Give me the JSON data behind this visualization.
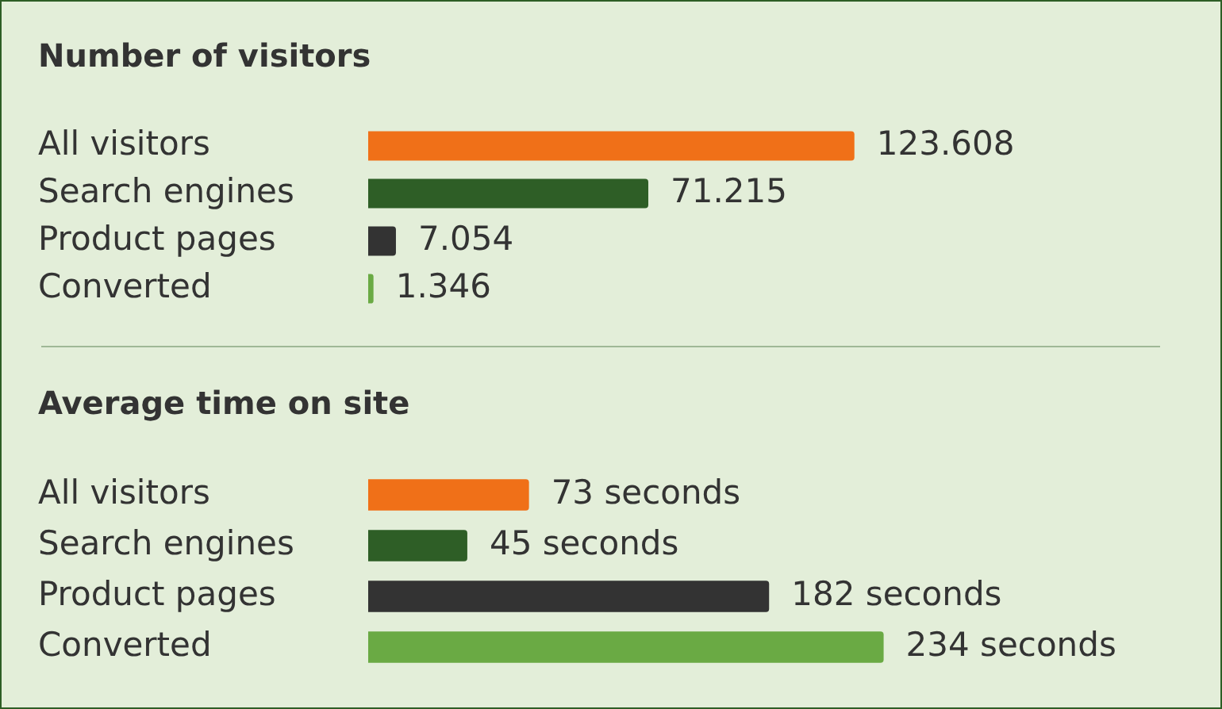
{
  "chart_data": [
    {
      "type": "bar",
      "orientation": "horizontal",
      "title": "Number of visitors",
      "categories": [
        "All visitors",
        "Search engines",
        "Product pages",
        "Converted"
      ],
      "values": [
        123608,
        71215,
        7054,
        1346
      ],
      "colors": [
        "#f07018",
        "#2e5e26",
        "#333333",
        "#6aaa44"
      ],
      "value_labels": [
        "123.608",
        "71.215",
        "7.054",
        "1.346"
      ]
    },
    {
      "type": "bar",
      "orientation": "horizontal",
      "title": "Average time on site",
      "categories": [
        "All visitors",
        "Search engines",
        "Product pages",
        "Converted"
      ],
      "values": [
        73,
        45,
        182,
        234
      ],
      "colors": [
        "#f07018",
        "#2e5e26",
        "#333333",
        "#6aaa44"
      ],
      "value_labels": [
        "73 seconds",
        "45 seconds",
        "182 seconds",
        "234 seconds"
      ]
    }
  ]
}
